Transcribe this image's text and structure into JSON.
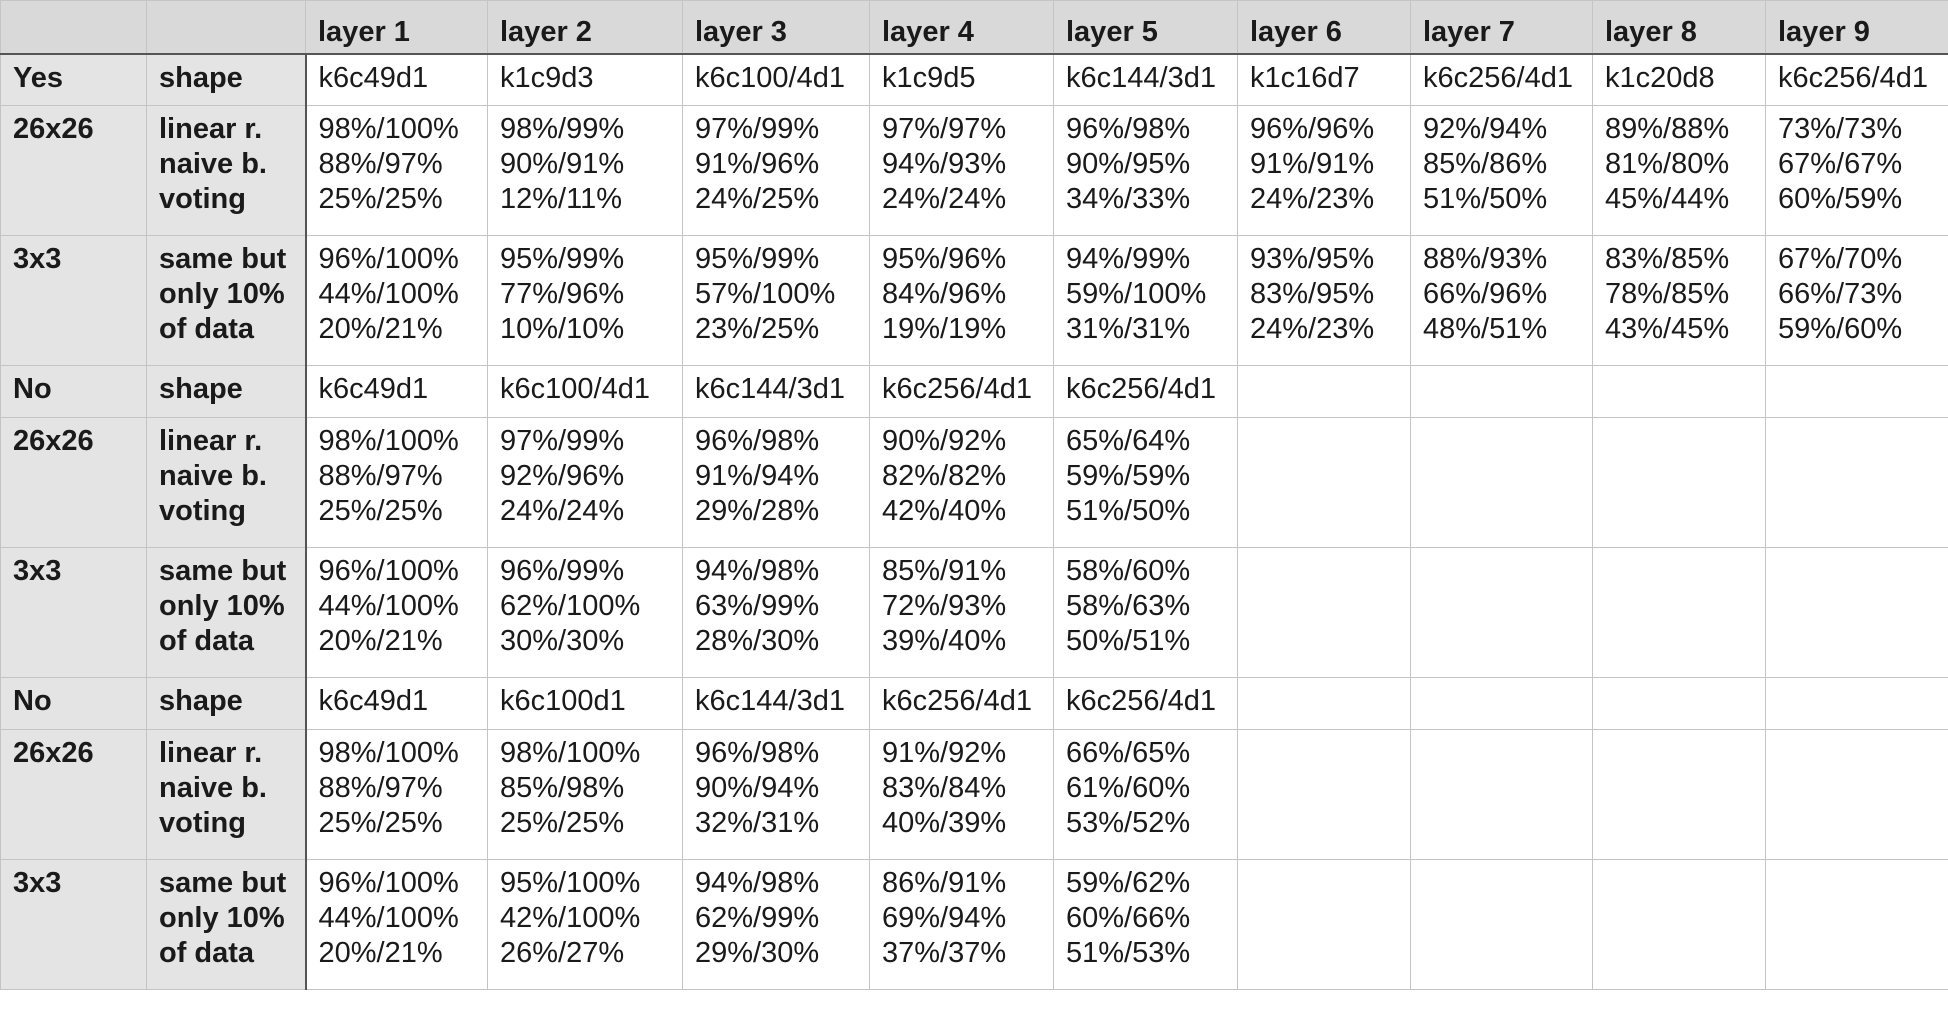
{
  "columns": [
    "",
    "",
    "layer 1",
    "layer 2",
    "layer 3",
    "layer 4",
    "layer 5",
    "layer 6",
    "layer 7",
    "layer 8",
    "layer 9"
  ],
  "rows": [
    {
      "type": "shape",
      "head": "Yes",
      "label": "shape",
      "cells": [
        "k6c49d1",
        "k1c9d3",
        "k6c100/4d1",
        "k1c9d5",
        "k6c144/3d1",
        "k1c16d7",
        "k6c256/4d1",
        "k1c20d8",
        "k6c256/4d1"
      ]
    },
    {
      "type": "metric",
      "head": "26x26",
      "label": [
        "linear r.",
        "naive b.",
        "voting"
      ],
      "cells": [
        [
          "98%/100%",
          "88%/97%",
          "25%/25%"
        ],
        [
          "98%/99%",
          "90%/91%",
          "12%/11%"
        ],
        [
          "97%/99%",
          "91%/96%",
          "24%/25%"
        ],
        [
          "97%/97%",
          "94%/93%",
          "24%/24%"
        ],
        [
          "96%/98%",
          "90%/95%",
          "34%/33%"
        ],
        [
          "96%/96%",
          "91%/91%",
          "24%/23%"
        ],
        [
          "92%/94%",
          "85%/86%",
          "51%/50%"
        ],
        [
          "89%/88%",
          "81%/80%",
          "45%/44%"
        ],
        [
          "73%/73%",
          "67%/67%",
          "60%/59%"
        ]
      ]
    },
    {
      "type": "metric",
      "head": "3x3",
      "label": [
        "same but",
        "only 10%",
        "of data"
      ],
      "cells": [
        [
          "96%/100%",
          "44%/100%",
          "20%/21%"
        ],
        [
          "95%/99%",
          "77%/96%",
          "10%/10%"
        ],
        [
          "95%/99%",
          "57%/100%",
          "23%/25%"
        ],
        [
          "95%/96%",
          "84%/96%",
          "19%/19%"
        ],
        [
          "94%/99%",
          "59%/100%",
          "31%/31%"
        ],
        [
          "93%/95%",
          "83%/95%",
          "24%/23%"
        ],
        [
          "88%/93%",
          "66%/96%",
          "48%/51%"
        ],
        [
          "83%/85%",
          "78%/85%",
          "43%/45%"
        ],
        [
          "67%/70%",
          "66%/73%",
          "59%/60%"
        ]
      ]
    },
    {
      "type": "shape",
      "head": "No",
      "label": "shape",
      "cells": [
        "k6c49d1",
        "k6c100/4d1",
        "k6c144/3d1",
        "k6c256/4d1",
        "k6c256/4d1",
        "",
        "",
        "",
        ""
      ]
    },
    {
      "type": "metric",
      "head": "26x26",
      "label": [
        "linear r.",
        "naive b.",
        "voting"
      ],
      "cells": [
        [
          "98%/100%",
          "88%/97%",
          "25%/25%"
        ],
        [
          "97%/99%",
          "92%/96%",
          "24%/24%"
        ],
        [
          "96%/98%",
          "91%/94%",
          "29%/28%"
        ],
        [
          "90%/92%",
          "82%/82%",
          "42%/40%"
        ],
        [
          "65%/64%",
          "59%/59%",
          "51%/50%"
        ],
        [],
        [],
        [],
        []
      ]
    },
    {
      "type": "metric",
      "head": "3x3",
      "label": [
        "same but",
        "only 10%",
        "of data"
      ],
      "cells": [
        [
          "96%/100%",
          "44%/100%",
          "20%/21%"
        ],
        [
          "96%/99%",
          "62%/100%",
          "30%/30%"
        ],
        [
          "94%/98%",
          "63%/99%",
          "28%/30%"
        ],
        [
          "85%/91%",
          "72%/93%",
          "39%/40%"
        ],
        [
          "58%/60%",
          "58%/63%",
          "50%/51%"
        ],
        [],
        [],
        [],
        []
      ]
    },
    {
      "type": "shape",
      "head": "No",
      "label": "shape",
      "cells": [
        "k6c49d1",
        "k6c100d1",
        "k6c144/3d1",
        "k6c256/4d1",
        "k6c256/4d1",
        "",
        "",
        "",
        ""
      ]
    },
    {
      "type": "metric",
      "head": "26x26",
      "label": [
        "linear r.",
        "naive b.",
        "voting"
      ],
      "cells": [
        [
          "98%/100%",
          "88%/97%",
          "25%/25%"
        ],
        [
          "98%/100%",
          "85%/98%",
          "25%/25%"
        ],
        [
          "96%/98%",
          "90%/94%",
          "32%/31%"
        ],
        [
          "91%/92%",
          "83%/84%",
          "40%/39%"
        ],
        [
          "66%/65%",
          "61%/60%",
          "53%/52%"
        ],
        [],
        [],
        [],
        []
      ]
    },
    {
      "type": "metric",
      "head": "3x3",
      "label": [
        "same but",
        "only 10%",
        "of data"
      ],
      "cells": [
        [
          "96%/100%",
          "44%/100%",
          "20%/21%"
        ],
        [
          "95%/100%",
          "42%/100%",
          "26%/27%"
        ],
        [
          "94%/98%",
          "62%/99%",
          "29%/30%"
        ],
        [
          "86%/91%",
          "69%/94%",
          "37%/37%"
        ],
        [
          "59%/62%",
          "60%/66%",
          "51%/53%"
        ],
        [],
        [],
        [],
        []
      ]
    }
  ]
}
